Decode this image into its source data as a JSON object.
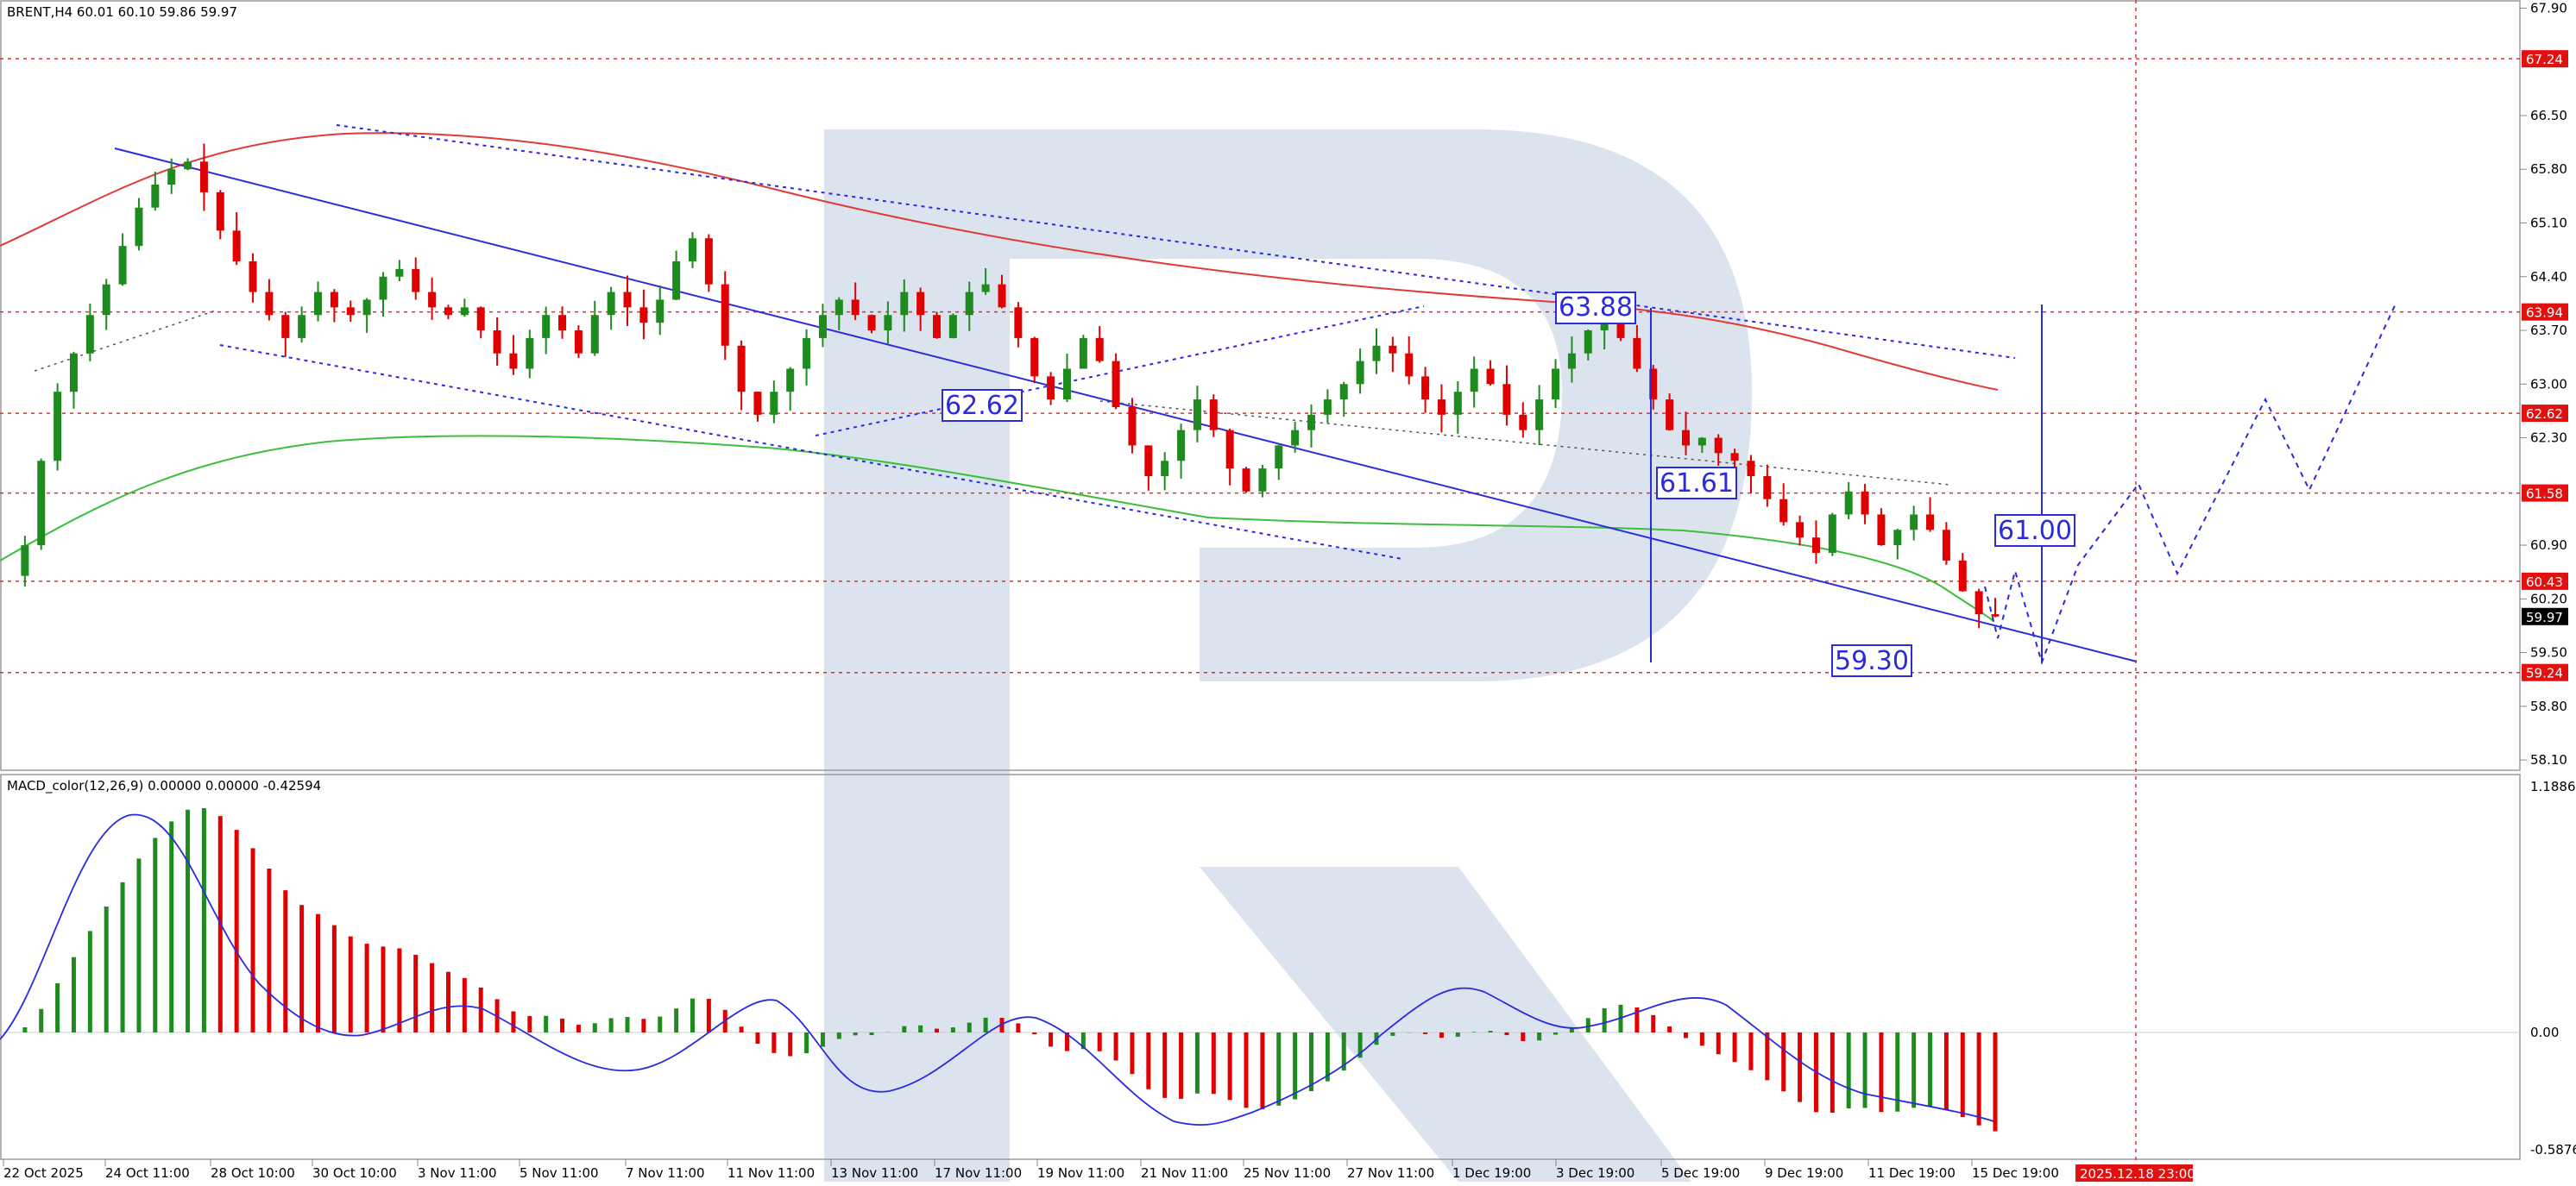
{
  "header": {
    "symbol_info": "BRENT,H4  60.01 60.10 59.86 59.97",
    "macd_info": "MACD_color(12,26,9) 0.00000 0.00000 -0.42594"
  },
  "colors": {
    "bull": "#1e8b1e",
    "bear": "#e00000",
    "level_line": "#e03030",
    "forecast_line": "#2a2ae0",
    "ma_red": "#e03a3a",
    "ma_green": "#3cbf3c",
    "price_tag": "#000000",
    "highlight_tag": "#e31010",
    "watermark": "#dbe3ee"
  },
  "chart_data": [
    {
      "type": "candlestick",
      "symbol": "BRENT",
      "timeframe": "H4",
      "ohlc_current": {
        "open": 60.01,
        "high": 60.1,
        "low": 59.86,
        "close": 59.97
      },
      "ylim": [
        58.0,
        67.95
      ],
      "y_ticks": [
        "67.90",
        "66.50",
        "65.80",
        "65.10",
        "64.40",
        "63.70",
        "63.00",
        "62.30",
        "60.90",
        "60.20",
        "59.50",
        "58.80",
        "58.10"
      ],
      "x_ticks": [
        "22 Oct 2025",
        "24 Oct 11:00",
        "28 Oct 10:00",
        "30 Oct 10:00",
        "3 Nov 11:00",
        "5 Nov 11:00",
        "7 Nov 11:00",
        "11 Nov 11:00",
        "13 Nov 11:00",
        "17 Nov 11:00",
        "19 Nov 11:00",
        "21 Nov 11:00",
        "25 Nov 11:00",
        "27 Nov 11:00",
        "1 Dec 19:00",
        "3 Dec 19:00",
        "5 Dec 19:00",
        "9 Dec 19:00",
        "11 Dec 19:00",
        "15 Dec 19:00"
      ],
      "x_highlight": "2025.12.18 23:00",
      "horizontal_levels": [
        "67.24",
        "63.94",
        "62.62",
        "61.58",
        "60.43",
        "59.24"
      ],
      "current_price": "59.97",
      "annotations": [
        "63.88",
        "62.62",
        "61.61",
        "61.00",
        "59.30"
      ],
      "price_path": [
        60.5,
        60.9,
        62.0,
        62.9,
        63.4,
        63.9,
        64.3,
        64.8,
        65.3,
        65.6,
        65.8,
        65.9,
        65.5,
        65.0,
        64.6,
        64.2,
        63.9,
        63.6,
        63.9,
        64.2,
        64.0,
        63.9,
        64.1,
        64.4,
        64.5,
        64.2,
        64.0,
        63.9,
        64.0,
        63.7,
        63.4,
        63.2,
        63.6,
        63.9,
        63.7,
        63.4,
        63.9,
        64.2,
        64.0,
        63.8,
        64.1,
        64.6,
        64.9,
        64.3,
        63.5,
        62.9,
        62.6,
        62.9,
        63.2,
        63.6,
        63.9,
        64.1,
        63.9,
        63.7,
        63.9,
        64.2,
        63.9,
        63.6,
        63.9,
        64.2,
        64.3,
        64.0,
        63.6,
        63.1,
        62.8,
        63.2,
        63.6,
        63.3,
        62.7,
        62.2,
        61.8,
        62.0,
        62.4,
        62.8,
        62.4,
        61.9,
        61.6,
        61.9,
        62.2,
        62.4,
        62.6,
        62.8,
        63.0,
        63.3,
        63.5,
        63.4,
        63.1,
        62.8,
        62.6,
        62.9,
        63.2,
        63.0,
        62.6,
        62.4,
        62.8,
        63.2,
        63.4,
        63.7,
        63.9,
        63.6,
        63.2,
        62.8,
        62.4,
        62.2,
        62.3,
        62.1,
        62.0,
        61.8,
        61.5,
        61.2,
        61.0,
        60.8,
        61.3,
        61.6,
        61.3,
        60.9,
        61.1,
        61.3,
        61.1,
        60.7,
        60.3,
        60.0,
        59.97
      ]
    },
    {
      "type": "bar",
      "name": "MACD_color(12,26,9)",
      "values_text": "0.00000 0.00000 -0.42594",
      "y_ticks": [
        "1.18862",
        "0.00",
        "-0.58760"
      ],
      "ylim": [
        -0.5876,
        1.18862
      ]
    }
  ]
}
